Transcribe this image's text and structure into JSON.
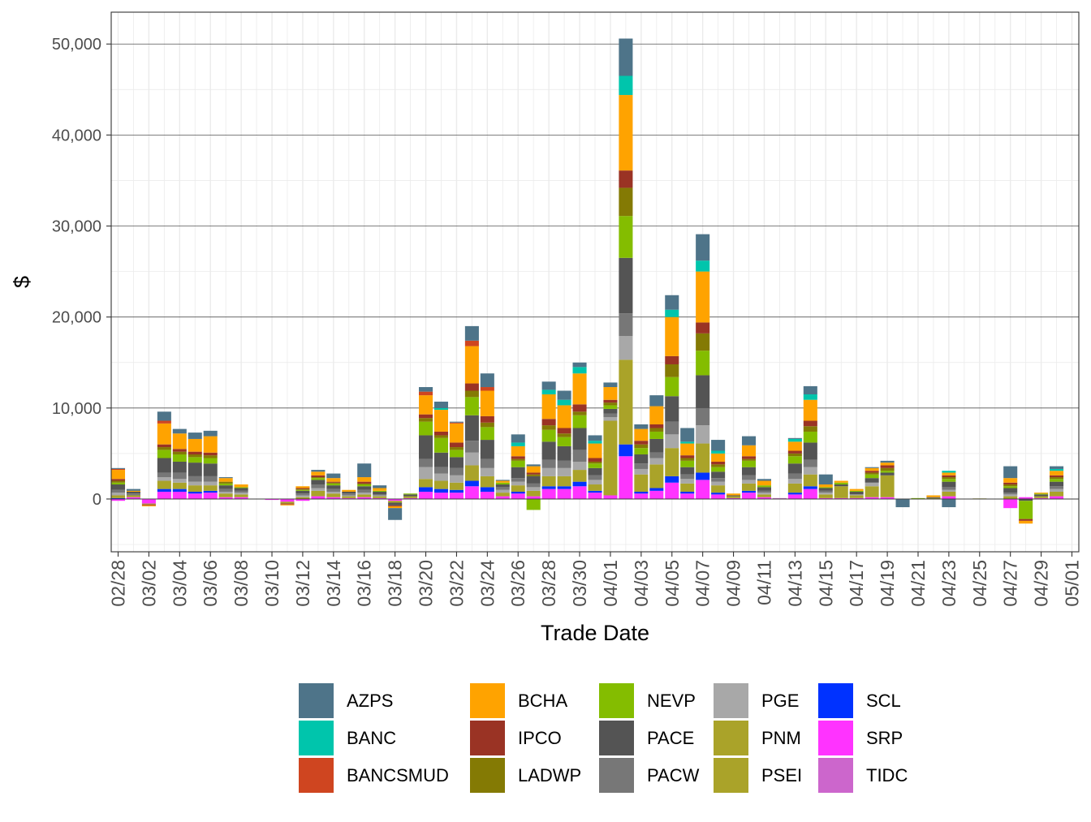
{
  "chart_data": {
    "type": "stacked-bar",
    "title": "",
    "xlabel": "Trade Date",
    "ylabel": "$",
    "ylim": [
      -5800,
      53500
    ],
    "yticks": [
      0,
      10000,
      20000,
      30000,
      40000,
      50000
    ],
    "ytick_labels": [
      "0",
      "10,000",
      "20,000",
      "30,000",
      "40,000",
      "50,000"
    ],
    "x_tick_dates": [
      "02/28",
      "03/02",
      "03/04",
      "03/06",
      "03/08",
      "03/10",
      "03/12",
      "03/14",
      "03/16",
      "03/18",
      "03/20",
      "03/22",
      "03/24",
      "03/26",
      "03/28",
      "03/30",
      "04/01",
      "04/03",
      "04/05",
      "04/07",
      "04/09",
      "04/11",
      "04/13",
      "04/15",
      "04/17",
      "04/19",
      "04/21",
      "04/23",
      "04/25",
      "04/27",
      "04/29",
      "05/01"
    ],
    "legend_position": "bottom",
    "series": [
      {
        "name": "AZPS",
        "color": "#4E7489"
      },
      {
        "name": "BANC",
        "color": "#00C5AC"
      },
      {
        "name": "BANCSMUD",
        "color": "#CF4520"
      },
      {
        "name": "BCHA",
        "color": "#FFA300"
      },
      {
        "name": "IPCO",
        "color": "#9A3324"
      },
      {
        "name": "LADWP",
        "color": "#847A04"
      },
      {
        "name": "NEVP",
        "color": "#84BD00"
      },
      {
        "name": "PACE",
        "color": "#545454"
      },
      {
        "name": "PACW",
        "color": "#777777"
      },
      {
        "name": "PGE",
        "color": "#A8A8A8"
      },
      {
        "name": "PNM",
        "color": "#AAA329"
      },
      {
        "name": "PSEI",
        "color": "#AAA329"
      },
      {
        "name": "SCL",
        "color": "#0032FF"
      },
      {
        "name": "SRP",
        "color": "#FF33FF"
      },
      {
        "name": "TIDC",
        "color": "#CC66CC"
      }
    ],
    "bars": [
      {
        "date": "02/28",
        "values": {
          "SRP": -200,
          "SCL": 100,
          "PNM": 300,
          "PGE": 300,
          "PACW": 300,
          "PACE": 600,
          "NEVP": 200,
          "LADWP": 200,
          "IPCO": 200,
          "BCHA": 1000,
          "BANCSMUD": 100,
          "AZPS": 100
        }
      },
      {
        "date": "03/01",
        "values": {
          "SRP": 200,
          "PNM": 200,
          "PACW": 200,
          "PACE": 200,
          "BCHA": 100,
          "AZPS": 200
        }
      },
      {
        "date": "03/02",
        "values": {
          "SRP": -500,
          "PNM": -100,
          "BCHA": -100,
          "IPCO": -100
        }
      },
      {
        "date": "03/03",
        "values": {
          "SRP": 800,
          "SCL": 300,
          "PNM": 900,
          "PGE": 400,
          "PACW": 500,
          "PACE": 1600,
          "NEVP": 900,
          "LADWP": 300,
          "IPCO": 300,
          "BCHA": 2300,
          "BANCSMUD": 300,
          "AZPS": 1000
        }
      },
      {
        "date": "03/04",
        "values": {
          "SRP": 800,
          "SCL": 300,
          "PNM": 700,
          "PGE": 400,
          "PACW": 700,
          "PACE": 1200,
          "NEVP": 800,
          "LADWP": 300,
          "IPCO": 300,
          "BCHA": 1700,
          "AZPS": 500
        }
      },
      {
        "date": "03/05",
        "values": {
          "SRP": 600,
          "SCL": 200,
          "PNM": 700,
          "PGE": 400,
          "PACW": 600,
          "PACE": 1500,
          "NEVP": 600,
          "LADWP": 300,
          "IPCO": 300,
          "BCHA": 1400,
          "AZPS": 700
        }
      },
      {
        "date": "03/06",
        "values": {
          "SRP": 700,
          "SCL": 200,
          "PNM": 600,
          "PGE": 400,
          "PACW": 600,
          "PACE": 1400,
          "NEVP": 600,
          "LADWP": 300,
          "IPCO": 300,
          "BCHA": 1800,
          "AZPS": 600
        }
      },
      {
        "date": "03/07",
        "values": {
          "SRP": 200,
          "PNM": 400,
          "PGE": 200,
          "PACW": 300,
          "PACE": 400,
          "NEVP": 200,
          "LADWP": 200,
          "BCHA": 400,
          "AZPS": 100
        }
      },
      {
        "date": "03/08",
        "values": {
          "SRP": 200,
          "PNM": 300,
          "PGE": 200,
          "PACW": 200,
          "PACE": 300,
          "NEVP": 100,
          "BCHA": 300
        }
      },
      {
        "date": "03/10",
        "values": {
          "SRP": -100
        }
      },
      {
        "date": "03/11",
        "values": {
          "SRP": -300,
          "PNM": -200,
          "BCHA": -100,
          "IPCO": -100
        }
      },
      {
        "date": "03/12",
        "values": {
          "SRP": -200,
          "PNM": 200,
          "PGE": 200,
          "PACW": 200,
          "PACE": 300,
          "NEVP": 100,
          "LADWP": 100,
          "IPCO": 100,
          "BCHA": 200
        }
      },
      {
        "date": "03/13",
        "values": {
          "SRP": 300,
          "PNM": 600,
          "PGE": 300,
          "PACW": 400,
          "PACE": 500,
          "NEVP": 200,
          "LADWP": 100,
          "IPCO": 200,
          "BCHA": 400,
          "AZPS": 200
        }
      },
      {
        "date": "03/14",
        "values": {
          "SRP": 200,
          "PNM": 400,
          "PGE": 200,
          "PACW": 300,
          "PACE": 400,
          "NEVP": 200,
          "LADWP": 100,
          "IPCO": 100,
          "BCHA": 400,
          "AZPS": 500
        }
      },
      {
        "date": "03/15",
        "values": {
          "SRP": 100,
          "PNM": 200,
          "PGE": 100,
          "PACW": 200,
          "PACE": 200,
          "BCHA": 200
        }
      },
      {
        "date": "03/16",
        "values": {
          "SRP": 200,
          "PNM": 300,
          "PGE": 200,
          "PACW": 300,
          "PACE": 400,
          "NEVP": 200,
          "LADWP": 100,
          "IPCO": 200,
          "BCHA": 500,
          "AZPS": 1500
        }
      },
      {
        "date": "03/17",
        "values": {
          "SRP": 100,
          "PNM": 200,
          "PGE": 100,
          "PACW": 100,
          "PACE": 300,
          "NEVP": 100,
          "BCHA": 300,
          "AZPS": 300
        }
      },
      {
        "date": "03/18",
        "values": {
          "SRP": -200,
          "PNM": -200,
          "PACE": -300,
          "BCHA": -200,
          "IPCO": -100,
          "AZPS": -1300
        }
      },
      {
        "date": "03/19",
        "values": {
          "SRP": 100,
          "PNM": 200,
          "PACE": 200,
          "NEVP": 100
        }
      },
      {
        "date": "03/20",
        "values": {
          "SRP": 800,
          "SCL": 500,
          "PNM": 900,
          "PGE": 1300,
          "PACW": 900,
          "PACE": 2600,
          "NEVP": 1500,
          "LADWP": 400,
          "IPCO": 400,
          "BCHA": 2100,
          "BANCSMUD": 400,
          "AZPS": 500
        }
      },
      {
        "date": "03/21",
        "values": {
          "SRP": 700,
          "SCL": 400,
          "PNM": 900,
          "PGE": 800,
          "PACW": 700,
          "PACE": 1600,
          "NEVP": 1600,
          "LADWP": 300,
          "IPCO": 400,
          "BCHA": 2400,
          "BANC": 200,
          "AZPS": 700
        }
      },
      {
        "date": "03/22",
        "values": {
          "SRP": 700,
          "SCL": 300,
          "PNM": 800,
          "PGE": 800,
          "PACW": 800,
          "PACE": 1200,
          "NEVP": 800,
          "LADWP": 300,
          "IPCO": 500,
          "BCHA": 2100,
          "BANCSMUD": 100,
          "AZPS": 100
        }
      },
      {
        "date": "03/23",
        "values": {
          "SRP": 1400,
          "SCL": 600,
          "PNM": 1700,
          "PGE": 1400,
          "PACW": 1300,
          "PACE": 2800,
          "NEVP": 2000,
          "LADWP": 700,
          "IPCO": 800,
          "BCHA": 4100,
          "BANCSMUD": 600,
          "AZPS": 1600
        }
      },
      {
        "date": "03/24",
        "values": {
          "SRP": 800,
          "SCL": 500,
          "PNM": 1200,
          "PGE": 900,
          "PACW": 1000,
          "PACE": 2100,
          "NEVP": 1400,
          "LADWP": 500,
          "IPCO": 700,
          "BCHA": 2800,
          "BANCSMUD": 400,
          "AZPS": 1500
        }
      },
      {
        "date": "03/25",
        "values": {
          "SRP": 300,
          "PNM": 400,
          "PGE": 300,
          "PACW": 300,
          "PACE": 300,
          "NEVP": 200,
          "BCHA": 200,
          "AZPS": 100
        }
      },
      {
        "date": "03/26",
        "values": {
          "SRP": 600,
          "SCL": 200,
          "PNM": 700,
          "PGE": 400,
          "PACW": 400,
          "PACE": 1200,
          "NEVP": 700,
          "LADWP": 200,
          "IPCO": 300,
          "BCHA": 1100,
          "BANC": 400,
          "AZPS": 900
        }
      },
      {
        "date": "03/27",
        "values": {
          "NEVP": -1200,
          "SRP": 300,
          "PNM": 600,
          "PGE": 400,
          "PACW": 400,
          "PACE": 800,
          "LADWP": 200,
          "IPCO": 200,
          "BCHA": 700,
          "AZPS": 200
        }
      },
      {
        "date": "03/28",
        "values": {
          "SRP": 1100,
          "SCL": 300,
          "PNM": 1100,
          "PGE": 900,
          "PACW": 900,
          "PACE": 2000,
          "NEVP": 1300,
          "LADWP": 500,
          "IPCO": 700,
          "BCHA": 2700,
          "BANC": 500,
          "AZPS": 900
        }
      },
      {
        "date": "03/29",
        "values": {
          "SRP": 1100,
          "SCL": 300,
          "PNM": 1100,
          "PGE": 900,
          "PACW": 800,
          "PACE": 1600,
          "NEVP": 1000,
          "LADWP": 400,
          "IPCO": 600,
          "BCHA": 2500,
          "BANC": 600,
          "AZPS": 1000
        }
      },
      {
        "date": "03/30",
        "values": {
          "SRP": 1400,
          "SCL": 500,
          "PNM": 1300,
          "PGE": 900,
          "PACW": 1300,
          "PACE": 2400,
          "NEVP": 1400,
          "LADWP": 400,
          "IPCO": 800,
          "BCHA": 3400,
          "BANC": 700,
          "AZPS": 500
        }
      },
      {
        "date": "03/31",
        "values": {
          "SRP": 700,
          "SCL": 200,
          "PNM": 700,
          "PGE": 500,
          "PACW": 500,
          "PACE": 800,
          "NEVP": 500,
          "LADWP": 200,
          "IPCO": 400,
          "BCHA": 1600,
          "BANC": 300,
          "AZPS": 600
        }
      },
      {
        "date": "04/01",
        "values": {
          "SRP": 400,
          "PNM": 8200,
          "PGE": 400,
          "PACW": 400,
          "PACE": 500,
          "NEVP": 400,
          "LADWP": 300,
          "IPCO": 300,
          "BCHA": 1400,
          "AZPS": 500
        }
      },
      {
        "date": "04/02",
        "values": {
          "SRP": 4700,
          "SCL": 1300,
          "PNM": 9300,
          "PGE": 2600,
          "PACW": 2500,
          "PACE": 6100,
          "NEVP": 4600,
          "LADWP": 3100,
          "IPCO": 1900,
          "BCHA": 8300,
          "BANC": 2100,
          "AZPS": 4100
        }
      },
      {
        "date": "04/03",
        "values": {
          "SRP": 600,
          "SCL": 200,
          "PNM": 1900,
          "PGE": 600,
          "PACW": 600,
          "PACE": 1000,
          "NEVP": 700,
          "LADWP": 400,
          "IPCO": 400,
          "BCHA": 1300,
          "AZPS": 500
        }
      },
      {
        "date": "04/04",
        "values": {
          "SRP": 900,
          "SCL": 300,
          "PNM": 2600,
          "PGE": 700,
          "PACW": 600,
          "PACE": 1500,
          "NEVP": 800,
          "LADWP": 400,
          "IPCO": 400,
          "BCHA": 2000,
          "AZPS": 1200
        }
      },
      {
        "date": "04/05",
        "values": {
          "SRP": 1800,
          "SCL": 700,
          "PNM": 3100,
          "PGE": 1500,
          "PACW": 1400,
          "PACE": 2800,
          "NEVP": 2100,
          "LADWP": 1400,
          "IPCO": 900,
          "BCHA": 4300,
          "BANC": 800,
          "AZPS": 1600
        }
      },
      {
        "date": "04/06",
        "values": {
          "SRP": 600,
          "SCL": 200,
          "PNM": 900,
          "PGE": 500,
          "PACW": 500,
          "PACE": 800,
          "NEVP": 700,
          "LADWP": 300,
          "IPCO": 300,
          "BCHA": 1300,
          "BANC": 200,
          "AZPS": 1500
        }
      },
      {
        "date": "04/07",
        "values": {
          "SRP": 2100,
          "SCL": 800,
          "PNM": 3200,
          "PGE": 2000,
          "PACW": 1900,
          "PACE": 3600,
          "NEVP": 2700,
          "LADWP": 1900,
          "IPCO": 1200,
          "BCHA": 5600,
          "BANC": 1200,
          "AZPS": 2900
        }
      },
      {
        "date": "04/08",
        "values": {
          "SRP": 500,
          "SCL": 200,
          "PNM": 800,
          "PGE": 400,
          "PACW": 400,
          "PACE": 700,
          "NEVP": 500,
          "LADWP": 300,
          "IPCO": 300,
          "BCHA": 900,
          "BANC": 300,
          "AZPS": 1200
        }
      },
      {
        "date": "04/09",
        "values": {
          "SRP": 100,
          "PNM": 200,
          "PACE": 100,
          "BCHA": 200
        }
      },
      {
        "date": "04/10",
        "values": {
          "SRP": 700,
          "SCL": 200,
          "PNM": 800,
          "PGE": 400,
          "PACW": 500,
          "PACE": 900,
          "NEVP": 700,
          "LADWP": 200,
          "IPCO": 300,
          "BCHA": 1200,
          "AZPS": 1000
        }
      },
      {
        "date": "04/11",
        "values": {
          "SRP": 200,
          "PNM": 300,
          "PGE": 200,
          "PACW": 200,
          "PACE": 400,
          "NEVP": 200,
          "BCHA": 500,
          "AZPS": 200
        }
      },
      {
        "date": "04/12",
        "values": {
          "SRP": 50,
          "TIDC": 50
        }
      },
      {
        "date": "04/13",
        "values": {
          "SRP": 500,
          "SCL": 200,
          "PNM": 1000,
          "PGE": 500,
          "PACW": 600,
          "PACE": 1100,
          "NEVP": 800,
          "LADWP": 300,
          "IPCO": 300,
          "BCHA": 1000,
          "BANC": 300,
          "AZPS": 100
        }
      },
      {
        "date": "04/14",
        "values": {
          "SRP": 1100,
          "SCL": 300,
          "PNM": 1300,
          "PGE": 800,
          "PACW": 800,
          "PACE": 1900,
          "NEVP": 1200,
          "LADWP": 600,
          "IPCO": 600,
          "BCHA": 2300,
          "BANC": 600,
          "AZPS": 900
        }
      },
      {
        "date": "04/15",
        "values": {
          "SRP": 100,
          "PNM": 400,
          "PGE": 200,
          "PACW": 200,
          "PACE": 300,
          "NEVP": 100,
          "BCHA": 300,
          "AZPS": 1100
        }
      },
      {
        "date": "04/16",
        "values": {
          "SRP": 100,
          "PNM": 1300,
          "PACE": 200,
          "NEVP": 200,
          "BCHA": 200
        }
      },
      {
        "date": "04/17",
        "values": {
          "SRP": 100,
          "PNM": 300,
          "PGE": 100,
          "PACE": 300,
          "NEVP": 100,
          "BCHA": 200
        }
      },
      {
        "date": "04/18",
        "values": {
          "SRP": 200,
          "PNM": 1200,
          "PGE": 400,
          "PACE": 500,
          "NEVP": 400,
          "LADWP": 200,
          "IPCO": 200,
          "BCHA": 300,
          "AZPS": 100
        }
      },
      {
        "date": "04/19",
        "values": {
          "SRP": 200,
          "PNM": 2400,
          "PACE": 300,
          "NEVP": 200,
          "LADWP": 300,
          "IPCO": 300,
          "BCHA": 300,
          "AZPS": 200
        }
      },
      {
        "date": "04/20",
        "values": {
          "AZPS": -900
        }
      },
      {
        "date": "04/21",
        "values": {
          "NEVP": 100
        }
      },
      {
        "date": "04/22",
        "values": {
          "PNM": 100,
          "PACE": 100,
          "BCHA": 200
        }
      },
      {
        "date": "04/23",
        "values": {
          "AZPS": -900,
          "SRP": 300,
          "PNM": 500,
          "PGE": 200,
          "PACW": 300,
          "PACE": 600,
          "NEVP": 300,
          "LADWP": 200,
          "IPCO": 200,
          "BCHA": 300,
          "BANC": 200
        }
      },
      {
        "date": "04/25",
        "values": {
          "PNM": 60
        }
      },
      {
        "date": "04/27",
        "values": {
          "SRP": -1000,
          "PNM": 300,
          "PGE": 200,
          "PACW": 200,
          "PACE": 500,
          "NEVP": 200,
          "LADWP": 200,
          "IPCO": 200,
          "BCHA": 500,
          "AZPS": 1300
        }
      },
      {
        "date": "04/28",
        "values": {
          "NEVP": -2000,
          "PACE": -200,
          "BCHA": -300,
          "IPCO": -200,
          "SRP": 200
        }
      },
      {
        "date": "04/29",
        "values": {
          "SRP": 100,
          "PNM": 200,
          "PACE": 200,
          "NEVP": 100,
          "BCHA": 100
        }
      },
      {
        "date": "04/30",
        "values": {
          "SRP": 300,
          "PNM": 500,
          "PGE": 300,
          "PACW": 300,
          "PACE": 500,
          "NEVP": 300,
          "LADWP": 200,
          "IPCO": 200,
          "BCHA": 500,
          "BANC": 200,
          "AZPS": 300
        }
      }
    ]
  }
}
